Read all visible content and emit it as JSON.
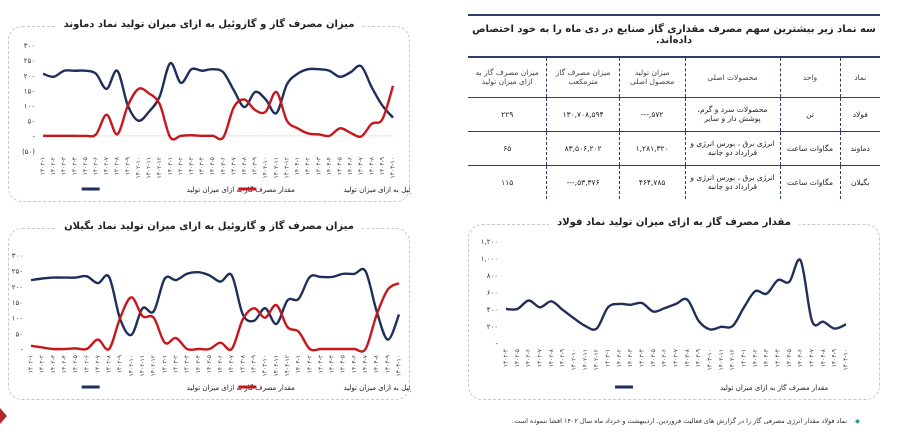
{
  "colors": {
    "gas": "#1f2f5c",
    "gasoil": "#c8161d",
    "table_rule": "#2c3e6b"
  },
  "table": {
    "title": "سه نماد زیر بیشترین سهم مصرف مقداری گاز صنایع در دی ماه را به خود اختصاص داده‌اند.",
    "headers": [
      "نماد",
      "واحد",
      "محصولات اصلی",
      "میزان تولید محصول اصلی",
      "میزان مصرف گاز مترمکعب",
      "میزان مصرف گاز به ازای میزان تولید"
    ],
    "rows": [
      [
        "فولاد",
        "تن",
        "محصولات سرد و گرم، پوشش دار و سایر",
        "۵۷۲,---",
        "۱۳۰,۷۰۸,۵۹۴",
        "۲۲۹"
      ],
      [
        "دماوند",
        "مگاوات ساعت",
        "انرژی برق ، بورس انرژی و قرارداد دو جانبه",
        "۱,۲۸۱,۳۲۰",
        "۸۳,۵۰۶,۲۰۲",
        "۶۵"
      ],
      [
        "بگیلان",
        "مگاوات ساعت",
        "انرژی برق ، بورس انرژی و قرارداد دو جانبه",
        "۴۶۴,۷۸۵",
        "۵۳,۳۷۶,---",
        "۱۱۵"
      ]
    ]
  },
  "footnote": "نماد فولاد مقدار انرژی مصرفی گاز را در گزارش های فعالیت فروردین، اردیبهشت و خرداد ماه سال ۱۴۰۲ افشا ننموده است.",
  "chart_data": [
    {
      "id": "damavand",
      "type": "line",
      "title": "میزان مصرف گاز و گازوئیل به ازای میزان تولید نماد دماوند",
      "ylim": [
        -50,
        300
      ],
      "yticks": [
        300,
        250,
        200,
        150,
        100,
        50,
        0,
        -50
      ],
      "ytick_labels": [
        "۳۰۰",
        "۲۵۰",
        "۲۰۰",
        "۱۵۰",
        "۱۰۰",
        "۵۰",
        "-",
        "(۵۰)"
      ],
      "categories": [
        "۱۴۰۲-۱",
        "۱۴۰۲-۲",
        "۱۴۰۲-۳",
        "۱۴۰۲-۴",
        "۱۴۰۲-۵",
        "۱۴۰۲-۶",
        "۱۴۰۲-۷",
        "۱۴۰۲-۸",
        "۱۴۰۲-۹",
        "۱۴۰۲-۱۰",
        "۱۴۰۲-۱۱",
        "۱۴۰۲-۱۲",
        "۱۴۰۳-۱",
        "۱۴۰۳-۲",
        "۱۴۰۳-۳",
        "۱۴۰۳-۴",
        "۱۴۰۳-۵",
        "۱۴۰۳-۶",
        "۱۴۰۳-۷",
        "۱۴۰۳-۸",
        "۱۴۰۳-۹",
        "۱۴۰۳-۱۰",
        "۱۴۰۳-۱۱",
        "۱۴۰۳-۱۲",
        "۱۴۰۴-۱",
        "۱۴۰۴-۲",
        "۱۴۰۴-۳",
        "۱۴۰۴-۴",
        "۱۴۰۴-۵",
        "۱۴۰۴-۶",
        "۱۴۰۴-۷",
        "۱۴۰۴-۸",
        "۱۴۰۴-۹",
        "۱۴۰۴-۱۰"
      ],
      "series": [
        {
          "name": "مقدار مصرف گاز به ازای میزان تولید",
          "color": "#1f2f5c",
          "values": [
            205,
            195,
            215,
            215,
            215,
            205,
            155,
            215,
            100,
            50,
            80,
            130,
            240,
            175,
            220,
            215,
            220,
            210,
            150,
            95,
            145,
            120,
            75,
            170,
            205,
            220,
            220,
            215,
            195,
            210,
            230,
            160,
            100,
            60
          ]
        },
        {
          "name": "میزان مصرف گازوئیل به ازای میزان تولید",
          "color": "#c8161d",
          "values": [
            0,
            0,
            0,
            0,
            0,
            5,
            70,
            5,
            100,
            155,
            140,
            105,
            -5,
            0,
            2,
            0,
            0,
            -5,
            95,
            120,
            85,
            80,
            145,
            50,
            25,
            8,
            5,
            0,
            25,
            10,
            -2,
            40,
            55,
            165
          ]
        }
      ],
      "legend": "bottom",
      "grid": false
    },
    {
      "id": "begilan",
      "type": "line",
      "title": "میزان مصرف گاز و گازوئیل به ازای میزان تولید نماد بگیلان",
      "ylim": [
        0,
        300
      ],
      "yticks": [
        300,
        250,
        200,
        150,
        100,
        50,
        0
      ],
      "ytick_labels": [
        "۳۰۰",
        "۲۵۰",
        "۲۰۰",
        "۱۵۰",
        "۱۰۰",
        "۵۰",
        "-"
      ],
      "categories": [
        "۱۴۰۲-۱",
        "۱۴۰۲-۲",
        "۱۴۰۲-۳",
        "۱۴۰۲-۴",
        "۱۴۰۲-۵",
        "۱۴۰۲-۶",
        "۱۴۰۲-۷",
        "۱۴۰۲-۸",
        "۱۴۰۲-۹",
        "۱۴۰۲-۱۰",
        "۱۴۰۲-۱۱",
        "۱۴۰۲-۱۲",
        "۱۴۰۳-۱",
        "۱۴۰۳-۲",
        "۱۴۰۳-۳",
        "۱۴۰۳-۴",
        "۱۴۰۳-۵",
        "۱۴۰۳-۶",
        "۱۴۰۳-۷",
        "۱۴۰۳-۸",
        "۱۴۰۳-۹",
        "۱۴۰۳-۱۰",
        "۱۴۰۳-۱۱",
        "۱۴۰۳-۱۲",
        "۱۴۰۴-۱",
        "۱۴۰۴-۲",
        "۱۴۰۴-۳",
        "۱۴۰۴-۴",
        "۱۴۰۴-۵",
        "۱۴۰۴-۶",
        "۱۴۰۴-۷",
        "۱۴۰۴-۸",
        "۱۴۰۴-۹",
        "۱۴۰۴-۱۰"
      ],
      "series": [
        {
          "name": "مقدار مصرف گاز به ازای میزان تولید",
          "color": "#1f2f5c",
          "values": [
            220,
            225,
            228,
            228,
            228,
            232,
            210,
            230,
            95,
            45,
            130,
            120,
            225,
            220,
            240,
            245,
            235,
            215,
            235,
            110,
            90,
            130,
            80,
            155,
            160,
            230,
            230,
            230,
            240,
            240,
            248,
            120,
            30,
            110
          ]
        },
        {
          "name": "میزان مصرف گازوئیل به ازای میزان تولید",
          "color": "#c8161d",
          "values": [
            10,
            5,
            0,
            0,
            2,
            0,
            30,
            0,
            100,
            165,
            105,
            100,
            20,
            35,
            0,
            0,
            0,
            20,
            0,
            95,
            130,
            100,
            140,
            70,
            55,
            0,
            0,
            0,
            0,
            0,
            0,
            110,
            190,
            210
          ]
        }
      ],
      "legend": "bottom",
      "grid": false
    },
    {
      "id": "foulad",
      "type": "line",
      "title": "مقدار مصرف گاز به ازای میزان تولید نماد فولاد",
      "ylim": [
        0,
        1200
      ],
      "yticks": [
        1200,
        1000,
        800,
        600,
        400,
        200,
        0
      ],
      "ytick_labels": [
        "۱,۲۰۰",
        "۱,۰۰۰",
        "۸۰۰",
        "۶۰۰",
        "۴۰۰",
        "۲۰۰",
        "-"
      ],
      "categories": [
        "۱۴۰۲-۴",
        "۱۴۰۲-۵",
        "۱۴۰۲-۶",
        "۱۴۰۲-۷",
        "۱۴۰۲-۸",
        "۱۴۰۲-۹",
        "۱۴۰۲-۱۰",
        "۱۴۰۲-۱۱",
        "۱۴۰۲-۱۲",
        "۱۴۰۳-۱",
        "۱۴۰۳-۲",
        "۱۴۰۳-۳",
        "۱۴۰۳-۴",
        "۱۴۰۳-۵",
        "۱۴۰۳-۶",
        "۱۴۰۳-۷",
        "۱۴۰۳-۸",
        "۱۴۰۳-۹",
        "۱۴۰۳-۱۰",
        "۱۴۰۳-۱۱",
        "۱۴۰۳-۱۲",
        "۱۴۰۴-۱",
        "۱۴۰۴-۲",
        "۱۴۰۴-۳",
        "۱۴۰۴-۴",
        "۱۴۰۴-۵",
        "۱۴۰۴-۶",
        "۱۴۰۴-۷",
        "۱۴۰۴-۸",
        "۱۴۰۴-۹",
        "۱۴۰۴-۱۰"
      ],
      "series": [
        {
          "name": "مقدار مصرف گاز به ازای میزان تولید",
          "color": "#1f2f5c",
          "values": [
            400,
            400,
            500,
            420,
            490,
            390,
            290,
            200,
            170,
            420,
            460,
            450,
            470,
            370,
            410,
            460,
            510,
            260,
            160,
            190,
            200,
            420,
            610,
            580,
            740,
            720,
            970,
            260,
            250,
            170,
            220
          ]
        }
      ],
      "legend": "bottom",
      "grid": false
    }
  ]
}
